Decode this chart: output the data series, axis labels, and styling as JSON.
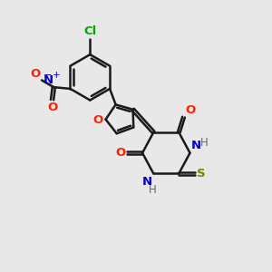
{
  "bg_color": "#e8e8e8",
  "bond_color": "#1a1a1a",
  "bond_width": 1.8,
  "figsize": [
    3.0,
    3.0
  ],
  "dpi": 100,
  "xlim": [
    -0.5,
    6.0
  ],
  "ylim": [
    1.0,
    9.5
  ],
  "cl_color": "#00aa00",
  "o_color": "#ff2200",
  "n_color": "#0000cc",
  "s_color": "#808000",
  "h_color": "#666666"
}
